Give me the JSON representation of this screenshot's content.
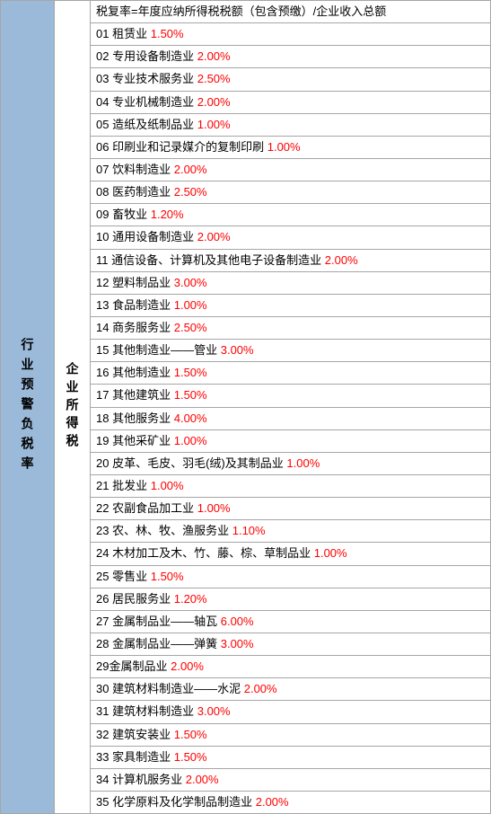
{
  "leftLabel": "行业预警负税率",
  "midLabel": "企业所得税",
  "headerText": "税复率=年度应纳所得税税额（包含预缴）/企业收入总额",
  "rows": [
    {
      "num": "01",
      "name": "租赁业",
      "pct": "1.50%"
    },
    {
      "num": "02",
      "name": "专用设备制造业",
      "pct": "2.00%"
    },
    {
      "num": "03",
      "name": "专业技术服务业",
      "pct": "2.50%"
    },
    {
      "num": "04",
      "name": "专业机械制造业",
      "pct": "2.00%"
    },
    {
      "num": "05",
      "name": "造纸及纸制品业",
      "pct": "1.00%"
    },
    {
      "num": "06",
      "name": "印刷业和记录媒介的复制印刷",
      "pct": "1.00%"
    },
    {
      "num": "07",
      "name": "饮料制造业",
      "pct": "2.00%"
    },
    {
      "num": "08",
      "name": "医药制造业",
      "pct": "2.50%"
    },
    {
      "num": "09",
      "name": "畜牧业",
      "pct": "1.20%"
    },
    {
      "num": "10",
      "name": "通用设备制造业",
      "pct": "2.00%"
    },
    {
      "num": "11",
      "name": "通信设备、计算机及其他电子设备制造业",
      "pct": "2.00%"
    },
    {
      "num": "12",
      "name": "塑料制品业",
      "pct": "3.00%"
    },
    {
      "num": "13",
      "name": "食品制造业",
      "pct": "1.00%"
    },
    {
      "num": "14",
      "name": "商务服务业",
      "pct": "2.50%"
    },
    {
      "num": "15",
      "name": "其他制造业——管业",
      "pct": "3.00%"
    },
    {
      "num": "16",
      "name": "其他制造业",
      "pct": "1.50%"
    },
    {
      "num": "17",
      "name": "其他建筑业",
      "pct": "1.50%"
    },
    {
      "num": "18",
      "name": "其他服务业",
      "pct": "4.00%"
    },
    {
      "num": "19",
      "name": "其他采矿业",
      "pct": "1.00%"
    },
    {
      "num": "20",
      "name": "皮革、毛皮、羽毛(绒)及其制品业",
      "pct": "1.00%"
    },
    {
      "num": "21",
      "name": "批发业",
      "pct": "1.00%"
    },
    {
      "num": "22",
      "name": "农副食品加工业",
      "pct": "1.00%"
    },
    {
      "num": "23",
      "name": "农、林、牧、渔服务业",
      "pct": "1.10%"
    },
    {
      "num": "24",
      "name": "木材加工及木、竹、藤、棕、草制品业",
      "pct": "1.00%"
    },
    {
      "num": "25",
      "name": "零售业",
      "pct": "1.50%"
    },
    {
      "num": "26",
      "name": "居民服务业",
      "pct": "1.20%"
    },
    {
      "num": "27",
      "name": "金属制品业——轴瓦",
      "pct": "6.00%"
    },
    {
      "num": "28",
      "name": "金属制品业——弹簧",
      "pct": "3.00%"
    },
    {
      "num": "29",
      "name": "金属制品业",
      "pct": "2.00%",
      "noSpace": true
    },
    {
      "num": "30",
      "name": "建筑材料制造业——水泥",
      "pct": "2.00%"
    },
    {
      "num": "31",
      "name": "建筑材料制造业",
      "pct": "3.00%"
    },
    {
      "num": "32",
      "name": "建筑安装业",
      "pct": "1.50%"
    },
    {
      "num": "33",
      "name": "家具制造业",
      "pct": "1.50%"
    },
    {
      "num": "34",
      "name": "计算机服务业",
      "pct": "2.00%"
    },
    {
      "num": "35",
      "name": "化学原料及化学制品制造业",
      "pct": "2.00%"
    }
  ],
  "colors": {
    "leftBg": "#9bb9d9",
    "border": "#a6a6a6",
    "pct": "#ff0000",
    "text": "#000000",
    "bg": "#ffffff"
  }
}
